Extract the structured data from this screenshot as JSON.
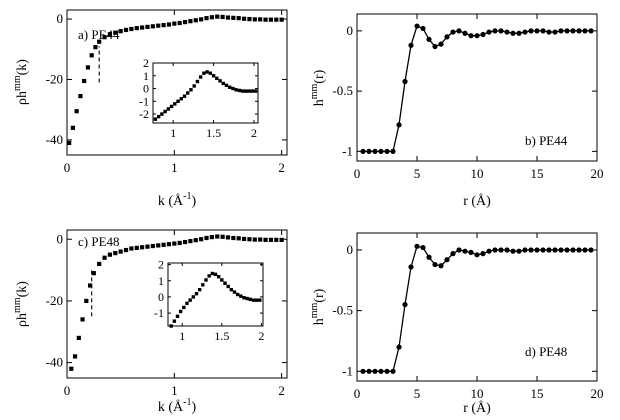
{
  "chart_data": [
    {
      "id": "a",
      "type": "scatter",
      "panel_label": "a) PE44",
      "xlabel": {
        "base": "k (Å",
        "sup": "-1",
        "tail": ")"
      },
      "ylabel": {
        "prefix": "ρh",
        "sup": "mm",
        "tail": "(k)"
      },
      "xlim": [
        0,
        2.05
      ],
      "ylim": [
        -45,
        3
      ],
      "xticks": [
        0,
        1,
        2
      ],
      "xtick_labels": [
        "0",
        "1",
        "2"
      ],
      "yticks": [
        0,
        -20,
        -40
      ],
      "ytick_labels": [
        "0",
        "-20",
        "-40"
      ],
      "marker": "square",
      "x": [
        0.02,
        0.055,
        0.09,
        0.125,
        0.16,
        0.195,
        0.23,
        0.265,
        0.3,
        0.35,
        0.4,
        0.45,
        0.5,
        0.55,
        0.6,
        0.65,
        0.7,
        0.75,
        0.8,
        0.85,
        0.9,
        0.95,
        1.0,
        1.05,
        1.1,
        1.15,
        1.2,
        1.25,
        1.3,
        1.35,
        1.4,
        1.45,
        1.5,
        1.55,
        1.6,
        1.65,
        1.7,
        1.75,
        1.8,
        1.85,
        1.9,
        1.95,
        2.0
      ],
      "y": [
        -41,
        -36,
        -30.5,
        -25.5,
        -20.5,
        -16,
        -12,
        -9.3,
        -7.5,
        -6,
        -5,
        -4.5,
        -4,
        -3.6,
        -3.3,
        -3,
        -2.8,
        -2.6,
        -2.4,
        -2.2,
        -2,
        -1.8,
        -1.5,
        -1.3,
        -1,
        -0.7,
        -0.4,
        -0.1,
        0.3,
        0.6,
        0.8,
        0.7,
        0.5,
        0.4,
        0.3,
        0.1,
        0.0,
        -0.1,
        -0.1,
        -0.2,
        -0.2,
        -0.2,
        -0.2
      ],
      "dashed_marker_x": 0.3,
      "dashed_marker_y": [
        -21,
        -9
      ],
      "inset": {
        "xlim": [
          0.75,
          2.05
        ],
        "ylim": [
          -2.7,
          2
        ],
        "xticks": [
          1,
          1.5,
          2
        ],
        "xtick_labels": [
          "1",
          "1.5",
          "2"
        ],
        "yticks": [
          2,
          1,
          0,
          -1,
          -2
        ],
        "ytick_labels": [
          "2",
          "1",
          "0",
          "-1",
          "-2"
        ],
        "x": [
          0.78,
          0.82,
          0.86,
          0.9,
          0.94,
          0.98,
          1.02,
          1.06,
          1.1,
          1.14,
          1.18,
          1.22,
          1.26,
          1.3,
          1.34,
          1.38,
          1.42,
          1.46,
          1.5,
          1.54,
          1.58,
          1.62,
          1.66,
          1.7,
          1.74,
          1.78,
          1.82,
          1.86,
          1.9,
          1.94,
          1.98,
          2.02
        ],
        "y": [
          -2.4,
          -2.2,
          -2.0,
          -1.8,
          -1.6,
          -1.4,
          -1.2,
          -1.0,
          -0.8,
          -0.6,
          -0.35,
          -0.1,
          0.2,
          0.55,
          0.9,
          1.2,
          1.3,
          1.2,
          1.0,
          0.8,
          0.6,
          0.4,
          0.25,
          0.1,
          0.0,
          -0.1,
          -0.15,
          -0.2,
          -0.2,
          -0.2,
          -0.2,
          -0.2
        ]
      }
    },
    {
      "id": "b",
      "type": "line",
      "panel_label": "b) PE44",
      "xlabel": {
        "base": "r (Å)",
        "sup": "",
        "tail": ""
      },
      "ylabel": {
        "prefix": "h",
        "sup": "mm",
        "tail": "(r)"
      },
      "xlim": [
        0,
        20
      ],
      "ylim": [
        -1.08,
        0.14
      ],
      "xticks": [
        0,
        5,
        10,
        15,
        20
      ],
      "xtick_labels": [
        "0",
        "5",
        "10",
        "15",
        "20"
      ],
      "yticks": [
        0,
        -0.5,
        -1
      ],
      "ytick_labels": [
        "0",
        "-0.5",
        "-1"
      ],
      "marker": "circle",
      "x": [
        0.5,
        1,
        1.5,
        2,
        2.5,
        3,
        3.5,
        4,
        4.5,
        5,
        5.5,
        6,
        6.5,
        7,
        7.5,
        8,
        8.5,
        9,
        9.5,
        10,
        10.5,
        11,
        11.5,
        12,
        12.5,
        13,
        13.5,
        14,
        14.5,
        15,
        15.5,
        16,
        16.5,
        17,
        17.5,
        18,
        18.5,
        19,
        19.5
      ],
      "y": [
        -1,
        -1,
        -1,
        -1,
        -1,
        -1,
        -0.78,
        -0.42,
        -0.12,
        0.04,
        0.02,
        -0.07,
        -0.13,
        -0.11,
        -0.05,
        -0.01,
        0.0,
        -0.02,
        -0.04,
        -0.04,
        -0.03,
        -0.01,
        0.0,
        0.0,
        -0.01,
        -0.02,
        -0.02,
        -0.01,
        0.0,
        0.0,
        0.0,
        -0.01,
        -0.01,
        0.0,
        0.0,
        0.0,
        0.0,
        0.0,
        0.0
      ]
    },
    {
      "id": "c",
      "type": "scatter",
      "panel_label": "c) PE48",
      "xlabel": {
        "base": "k (Å",
        "sup": "-1",
        "tail": ")"
      },
      "ylabel": {
        "prefix": "ρh",
        "sup": "mm",
        "tail": "(k)"
      },
      "xlim": [
        0,
        2.05
      ],
      "ylim": [
        -45,
        3
      ],
      "xticks": [
        0,
        1,
        2
      ],
      "xtick_labels": [
        "0",
        "1",
        "2"
      ],
      "yticks": [
        0,
        -20,
        -40
      ],
      "ytick_labels": [
        "0",
        "-20",
        "-40"
      ],
      "marker": "square",
      "x": [
        0.04,
        0.075,
        0.11,
        0.145,
        0.18,
        0.215,
        0.25,
        0.3,
        0.35,
        0.4,
        0.45,
        0.5,
        0.55,
        0.6,
        0.65,
        0.7,
        0.75,
        0.8,
        0.85,
        0.9,
        0.95,
        1.0,
        1.05,
        1.1,
        1.15,
        1.2,
        1.25,
        1.3,
        1.35,
        1.4,
        1.45,
        1.5,
        1.55,
        1.6,
        1.65,
        1.7,
        1.75,
        1.8,
        1.85,
        1.9,
        1.95,
        2.0
      ],
      "y": [
        -42,
        -38,
        -32,
        -26,
        -20,
        -15,
        -11,
        -8,
        -6,
        -5,
        -4.5,
        -4,
        -3.5,
        -3,
        -2.8,
        -2.6,
        -2.4,
        -2.2,
        -2,
        -1.8,
        -1.6,
        -1.4,
        -1.2,
        -0.9,
        -0.6,
        -0.3,
        0,
        0.4,
        0.7,
        0.9,
        0.8,
        0.6,
        0.4,
        0.3,
        0.1,
        0.0,
        -0.1,
        -0.1,
        -0.2,
        -0.2,
        -0.2,
        -0.2
      ],
      "dashed_marker_x": 0.23,
      "dashed_marker_y": [
        -25,
        -10
      ],
      "inset": {
        "xlim": [
          0.82,
          2.02
        ],
        "ylim": [
          -1.8,
          2.1
        ],
        "xticks": [
          1,
          1.5,
          2
        ],
        "xtick_labels": [
          "1",
          "1.5",
          "2"
        ],
        "yticks": [
          2,
          1,
          0,
          -1
        ],
        "ytick_labels": [
          "2",
          "1",
          "0",
          "-1"
        ],
        "x": [
          0.86,
          0.9,
          0.94,
          0.98,
          1.02,
          1.06,
          1.1,
          1.14,
          1.18,
          1.22,
          1.26,
          1.3,
          1.34,
          1.38,
          1.42,
          1.46,
          1.5,
          1.54,
          1.58,
          1.62,
          1.66,
          1.7,
          1.74,
          1.78,
          1.82,
          1.86,
          1.9,
          1.94,
          1.98
        ],
        "y": [
          -1.8,
          -1.5,
          -1.2,
          -0.9,
          -0.65,
          -0.4,
          -0.2,
          0.0,
          0.2,
          0.45,
          0.75,
          1.05,
          1.3,
          1.45,
          1.4,
          1.25,
          1.05,
          0.85,
          0.65,
          0.45,
          0.3,
          0.15,
          0.05,
          -0.05,
          -0.1,
          -0.15,
          -0.2,
          -0.2,
          -0.2
        ]
      }
    },
    {
      "id": "d",
      "type": "line",
      "panel_label": "d) PE48",
      "xlabel": {
        "base": "r (Å)",
        "sup": "",
        "tail": ""
      },
      "ylabel": {
        "prefix": "h",
        "sup": "mm",
        "tail": "(r)"
      },
      "xlim": [
        0,
        20
      ],
      "ylim": [
        -1.08,
        0.14
      ],
      "xticks": [
        0,
        5,
        10,
        15,
        20
      ],
      "xtick_labels": [
        "0",
        "5",
        "10",
        "15",
        "20"
      ],
      "yticks": [
        0,
        -0.5,
        -1
      ],
      "ytick_labels": [
        "0",
        "-0.5",
        "-1"
      ],
      "marker": "circle",
      "x": [
        0.5,
        1,
        1.5,
        2,
        2.5,
        3,
        3.5,
        4,
        4.5,
        5,
        5.5,
        6,
        6.5,
        7,
        7.5,
        8,
        8.5,
        9,
        9.5,
        10,
        10.5,
        11,
        11.5,
        12,
        12.5,
        13,
        13.5,
        14,
        14.5,
        15,
        15.5,
        16,
        16.5,
        17,
        17.5,
        18,
        18.5,
        19,
        19.5
      ],
      "y": [
        -1,
        -1,
        -1,
        -1,
        -1,
        -1,
        -0.8,
        -0.45,
        -0.14,
        0.03,
        0.02,
        -0.06,
        -0.12,
        -0.13,
        -0.08,
        -0.03,
        0.0,
        -0.01,
        -0.02,
        -0.04,
        -0.03,
        -0.01,
        0.0,
        0.0,
        0.0,
        -0.01,
        -0.01,
        0.0,
        0.0,
        0.0,
        0.0,
        0.0,
        0.0,
        0.0,
        0.0,
        0.0,
        0.0,
        0.0,
        0.0
      ]
    }
  ]
}
